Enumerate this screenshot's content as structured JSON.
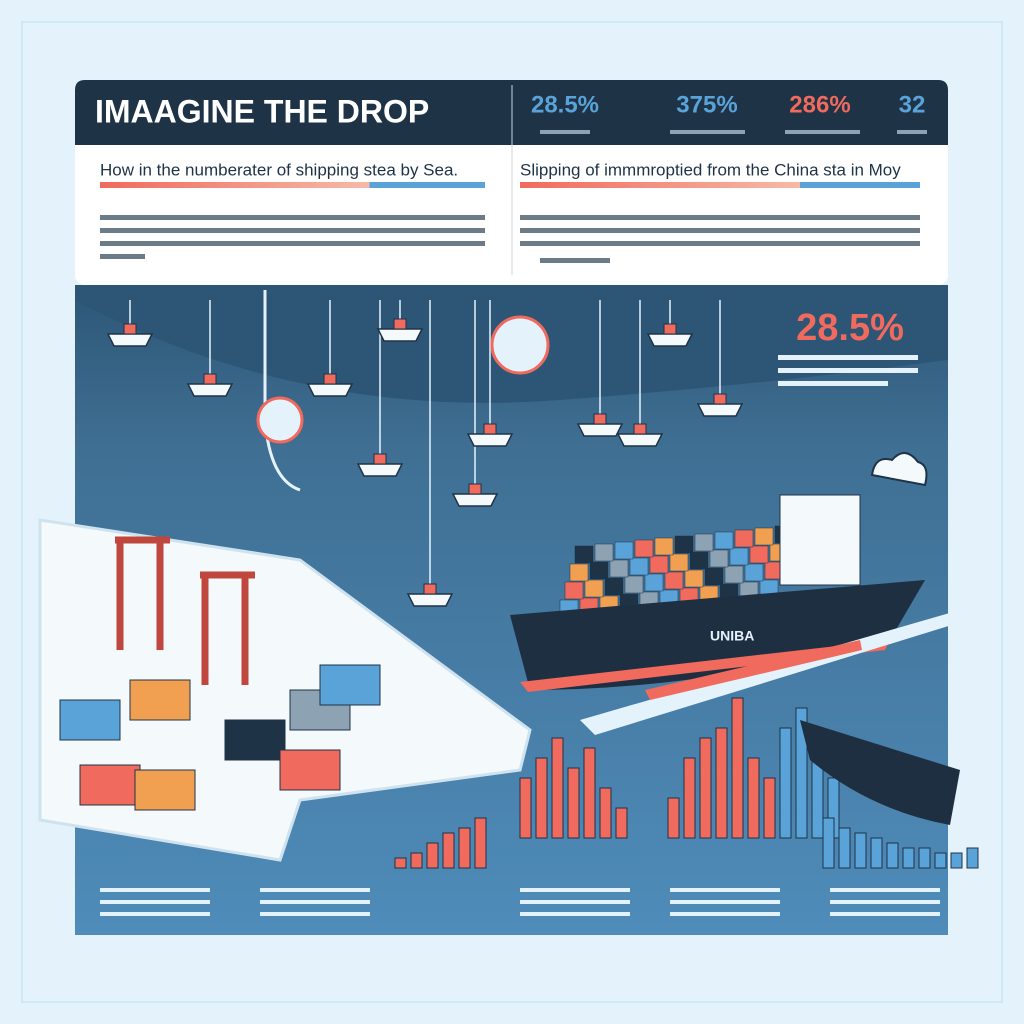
{
  "header": {
    "title": "IMAAGINE THE DROP",
    "stats": [
      "28.5%",
      "375%",
      "286%",
      "32"
    ]
  },
  "columns": [
    {
      "subtitle": "How in the numberater of shipping stea by Sea."
    },
    {
      "subtitle": "Slipping of immmroptied from the China sta in Moy"
    }
  ],
  "highlight": {
    "value": "28.5%"
  },
  "ship": {
    "label": "UNIBA"
  }
}
